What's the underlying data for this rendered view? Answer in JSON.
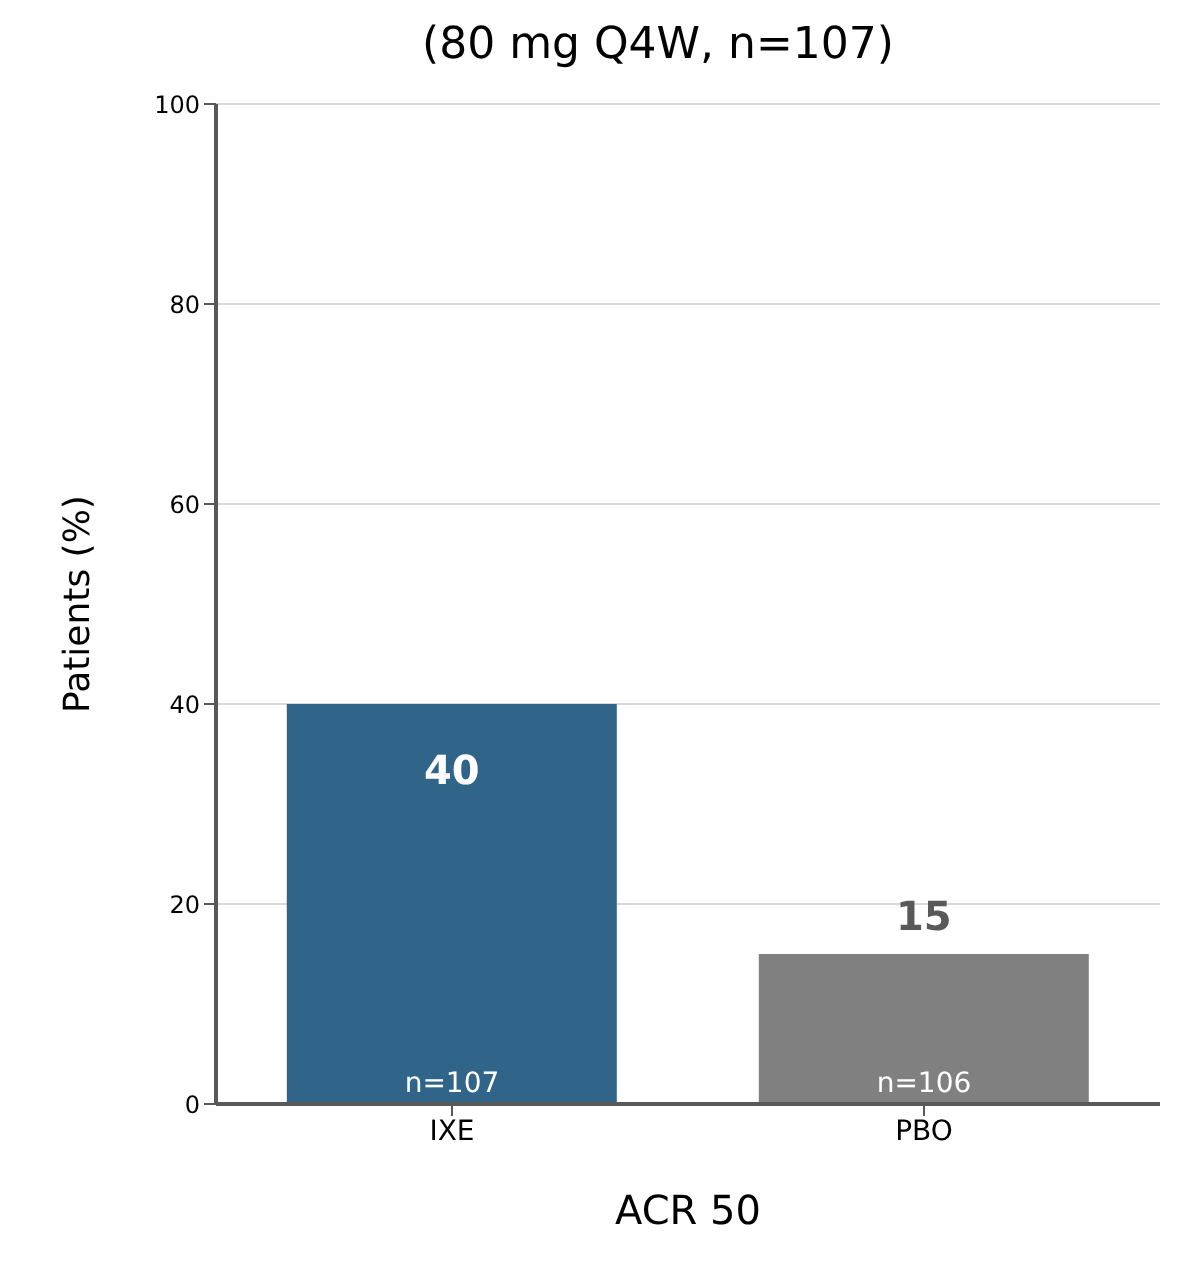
{
  "chart_data": {
    "type": "bar",
    "title": "(80 mg Q4W, n=107)",
    "xlabel": "ACR 50",
    "ylabel": "Patients (%)",
    "categories": [
      "IXE",
      "PBO"
    ],
    "values": [
      40,
      15
    ],
    "colors": [
      "#316489",
      "#808080"
    ],
    "ylim": [
      0,
      100
    ],
    "yticks": [
      0,
      20,
      40,
      60,
      80,
      100
    ],
    "grid": "y",
    "data_labels": true,
    "annotations": [
      {
        "text": "n=107",
        "x": "IXE",
        "y": 0
      },
      {
        "text": "n=106",
        "x": "PBO",
        "y": 0
      }
    ]
  }
}
